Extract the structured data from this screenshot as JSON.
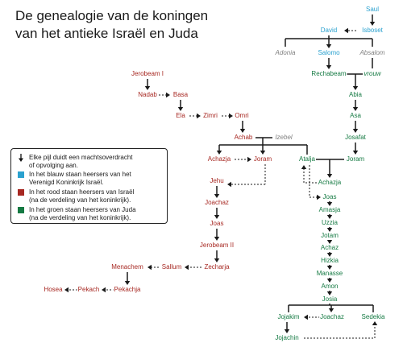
{
  "title": {
    "line1": "De genealogie van de koningen",
    "line2": "van het antieke Israël en Juda"
  },
  "legend": {
    "arrow_text_1": "Elke pijl duidt een machtsoverdracht",
    "arrow_text_2": "of opvolging aan.",
    "blue_text_1": "In het blauw staan heersers van het",
    "blue_text_2": "Verenigd Koninkrijk Israël.",
    "red_text_1": "In het rood staan heersers van Israël",
    "red_text_2": "(na de verdeling van het koninkrijk).",
    "green_text_1": "In het groen staan heersers van Juda",
    "green_text_2": "(na de verdeling van het koninkrijk).",
    "colors": {
      "blue": "#2aa1cf",
      "red": "#a72822",
      "green": "#157a43"
    }
  },
  "people": {
    "saul": "Saul",
    "david": "David",
    "isboset": "Isboset",
    "adonia": "Adonia",
    "salomo": "Salomo",
    "absalom": "Absalom",
    "rechabeam": "Rechabeam",
    "vrouw": "vrouw",
    "jerobeam1": "Jerobeam I",
    "nadab": "Nadab",
    "basa": "Basa",
    "ela": "Ela",
    "zimri": "Zimri",
    "omri": "Omri",
    "abia": "Abia",
    "asa": "Asa",
    "josafat": "Josafat",
    "achab": "Achab",
    "izebel": "Izebel",
    "achazja_israel": "Achazja",
    "joram_israel": "Joram",
    "atalja": "Atalja",
    "joram_juda": "Joram",
    "achazja_juda": "Achazja",
    "jehu": "Jehu",
    "joachaz_israel": "Joachaz",
    "joas_israel": "Joas",
    "jerobeam2": "Jerobeam II",
    "zecharja": "Zecharja",
    "sallum": "Sallum",
    "menachem": "Menachem",
    "pekachja": "Pekachja",
    "pekach": "Pekach",
    "hosea": "Hosea",
    "joas_juda": "Joas",
    "amasja": "Amasja",
    "uzzia": "Uzzia",
    "jotam": "Jotam",
    "achaz": "Achaz",
    "hizkia": "Hizkia",
    "manasse": "Manasse",
    "amon": "Amon",
    "josia": "Josia",
    "jojakim": "Jojakim",
    "joachaz_juda": "Joachaz",
    "sedekia": "Sedekia",
    "jojachin": "Jojachin"
  }
}
